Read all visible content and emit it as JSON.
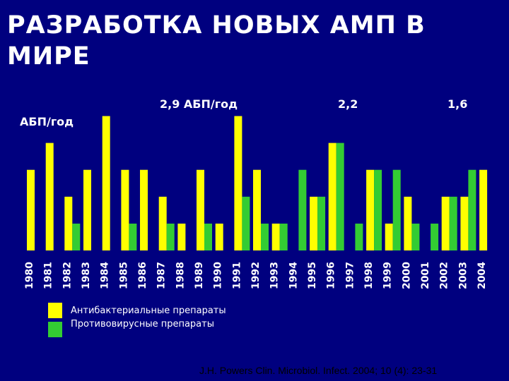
{
  "title": "РАЗРАБОТКА НОВЫХ АМП В МИРЕ",
  "source": "J.H. Powers Clin. Microbiol. Infect. 2004; 10 (4): 23-31",
  "legend": {
    "antibacterial": "Антибактериальные препараты",
    "antiviral": "Противовирусные препараты"
  },
  "colors": {
    "background": "#00007f",
    "antibacterial": "#ffff00",
    "antiviral": "#33cc33"
  },
  "chart_data": {
    "type": "bar",
    "ylabel": "АБП/год",
    "grid": false,
    "legend_position": "bottom-left",
    "annotations": [
      "2,9 АБП/год",
      "2,2",
      "1,6"
    ],
    "categories": [
      "1980",
      "1981",
      "1982",
      "1983",
      "1984",
      "1985",
      "1986",
      "1987",
      "1988",
      "1989",
      "1990",
      "1991",
      "1992",
      "1993",
      "1994",
      "1995",
      "1996",
      "1997",
      "1998",
      "1999",
      "2000",
      "2001",
      "2002",
      "2003",
      "2004"
    ],
    "series": [
      {
        "name": "Антибактериальные препараты",
        "color": "#ffff00",
        "values": [
          3,
          4,
          2,
          3,
          5,
          3,
          3,
          2,
          1,
          3,
          1,
          5,
          3,
          1,
          0,
          2,
          4,
          0,
          3,
          1,
          2,
          0,
          2,
          2,
          3
        ]
      },
      {
        "name": "Противовирусные препараты",
        "color": "#33cc33",
        "values": [
          0,
          0,
          1,
          0,
          0,
          1,
          0,
          1,
          0,
          1,
          0,
          2,
          1,
          1,
          3,
          2,
          4,
          1,
          3,
          3,
          1,
          1,
          2,
          3,
          0
        ]
      }
    ]
  }
}
